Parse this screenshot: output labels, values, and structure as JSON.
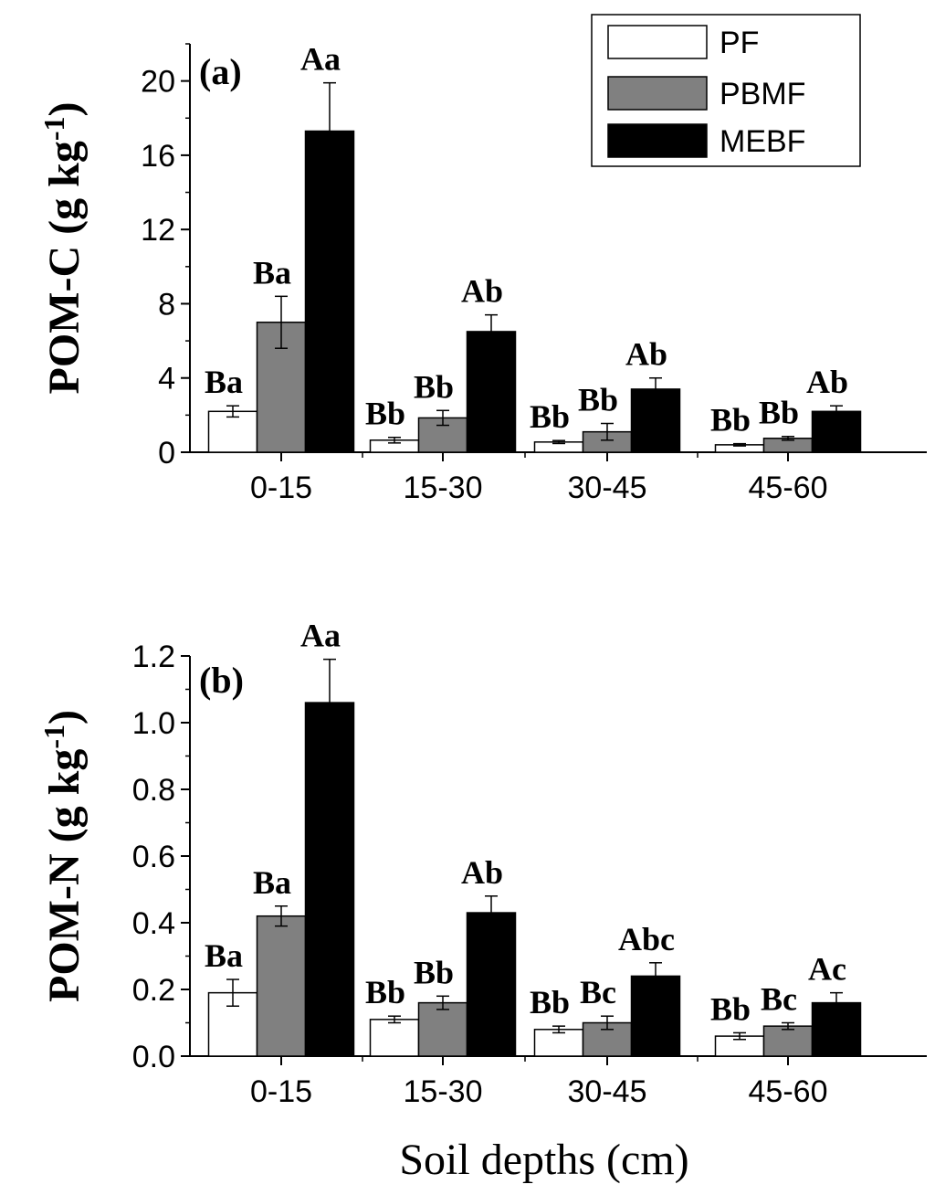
{
  "legend": [
    "PF",
    "PBMF",
    "MEBF"
  ],
  "series_colors": {
    "PF": "#ffffff",
    "PBMF": "#808080",
    "MEBF": "#000000"
  },
  "xlabel_shared": "Soil depths (cm)",
  "chart_data": [
    {
      "type": "bar",
      "panel_label": "(a)",
      "ylabel": "POM-C  (g kg",
      "ylabel_superscript": "-1",
      "ylabel_close": ")",
      "categories": [
        "0-15",
        "15-30",
        "30-45",
        "45-60"
      ],
      "ylim": [
        0,
        22
      ],
      "yticks": [
        0,
        4,
        8,
        12,
        16,
        20
      ],
      "ytick_labels": [
        "0",
        "4",
        "8",
        "12",
        "16",
        "20"
      ],
      "series": [
        {
          "name": "PF",
          "values": [
            2.2,
            0.65,
            0.55,
            0.4
          ],
          "errors": [
            0.3,
            0.15,
            0.08,
            0.06
          ],
          "labels": [
            "Ba",
            "Bb",
            "Bb",
            "Bb"
          ]
        },
        {
          "name": "PBMF",
          "values": [
            7.0,
            1.85,
            1.1,
            0.75
          ],
          "errors": [
            1.4,
            0.4,
            0.45,
            0.1
          ],
          "labels": [
            "Ba",
            "Bb",
            "Bb",
            "Bb"
          ]
        },
        {
          "name": "MEBF",
          "values": [
            17.3,
            6.5,
            3.4,
            2.2
          ],
          "errors": [
            2.6,
            0.9,
            0.6,
            0.3
          ],
          "labels": [
            "Aa",
            "Ab",
            "Ab",
            "Ab"
          ]
        }
      ]
    },
    {
      "type": "bar",
      "panel_label": "(b)",
      "ylabel": "POM-N (g kg",
      "ylabel_superscript": "-1",
      "ylabel_close": ")",
      "categories": [
        "0-15",
        "15-30",
        "30-45",
        "45-60"
      ],
      "ylim": [
        0,
        1.2
      ],
      "yticks": [
        0,
        0.2,
        0.4,
        0.6,
        0.8,
        1.0,
        1.2
      ],
      "ytick_labels": [
        "0.0",
        "0.2",
        "0.4",
        "0.6",
        "0.8",
        "1.0",
        "1.2"
      ],
      "xlabel": "Soil depths (cm)",
      "series": [
        {
          "name": "PF",
          "values": [
            0.19,
            0.11,
            0.08,
            0.06
          ],
          "errors": [
            0.04,
            0.01,
            0.01,
            0.01
          ],
          "labels": [
            "Ba",
            "Bb",
            "Bb",
            "Bb"
          ]
        },
        {
          "name": "PBMF",
          "values": [
            0.42,
            0.16,
            0.1,
            0.09
          ],
          "errors": [
            0.03,
            0.02,
            0.02,
            0.01
          ],
          "labels": [
            "Ba",
            "Bb",
            "Bc",
            "Bc"
          ]
        },
        {
          "name": "MEBF",
          "values": [
            1.06,
            0.43,
            0.24,
            0.16
          ],
          "errors": [
            0.13,
            0.05,
            0.04,
            0.03
          ],
          "labels": [
            "Aa",
            "Ab",
            "Abc",
            "Ac"
          ]
        }
      ]
    }
  ]
}
